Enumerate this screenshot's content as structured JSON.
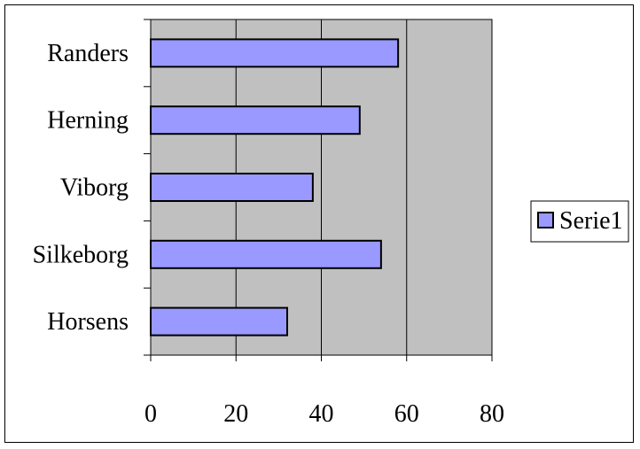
{
  "chart_data": {
    "type": "bar",
    "orientation": "horizontal",
    "categories": [
      "Randers",
      "Herning",
      "Viborg",
      "Silkeborg",
      "Horsens"
    ],
    "series": [
      {
        "name": "Serie1",
        "values": [
          58,
          49,
          38,
          54,
          32
        ]
      }
    ],
    "xlim": [
      0,
      80
    ],
    "xticks": [
      "0",
      "20",
      "40",
      "60",
      "80"
    ],
    "grid": "vertical",
    "legend_position": "right",
    "title": "",
    "xlabel": "",
    "ylabel": ""
  },
  "colors": {
    "plot_background": "#c0c0c0",
    "bar_fill": "#9999ff",
    "bar_stroke": "#000000",
    "gridline": "#000000",
    "axis": "#000000"
  }
}
